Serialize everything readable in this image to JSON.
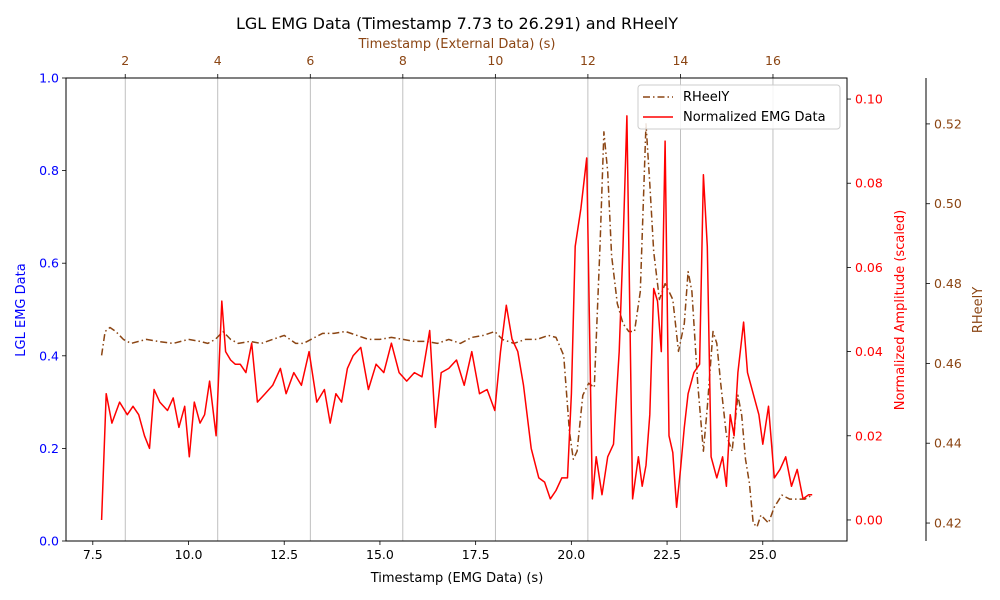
{
  "chart_data": {
    "type": "line",
    "title": "LGL EMG Data (Timestamp 7.73 to 26.291) and RHeelY",
    "xlabel": "Timestamp (EMG Data) (s)",
    "xlabel_top": "Timestamp (External Data) (s)",
    "ylabel_left": "LGL EMG Data",
    "ylabel_right1": "Normalized Amplitude (scaled)",
    "ylabel_right2": "RHeelY",
    "xlim": [
      6.8,
      27.2
    ],
    "xticks": [
      7.5,
      10.0,
      12.5,
      15.0,
      17.5,
      20.0,
      22.5,
      25.0
    ],
    "xtick_labels": [
      "7.5",
      "10.0",
      "12.5",
      "15.0",
      "17.5",
      "20.0",
      "22.5",
      "25.0"
    ],
    "xlim_top": [
      0.72,
      17.6
    ],
    "xticks_top": [
      2,
      4,
      6,
      8,
      10,
      12,
      14,
      16
    ],
    "xtick_labels_top": [
      "2",
      "4",
      "6",
      "8",
      "10",
      "12",
      "14",
      "16"
    ],
    "ylim_left": [
      0.0,
      1.0
    ],
    "yticks_left": [
      "0.0",
      "0.2",
      "0.4",
      "0.6",
      "0.8",
      "1.0"
    ],
    "ylim_right1": [
      -0.005,
      0.105
    ],
    "yticks_right1": [
      "0.00",
      "0.02",
      "0.04",
      "0.06",
      "0.08",
      "0.10"
    ],
    "ylim_right2": [
      0.4155,
      0.5315
    ],
    "yticks_right2": [
      "0.42",
      "0.44",
      "0.46",
      "0.48",
      "0.50",
      "0.52"
    ],
    "grid": "vertical lines at top-axis ticks",
    "legend_position": "upper-right",
    "colors": {
      "left_axis": "#0000ff",
      "emg": "#ff0000",
      "rheel": "#8b4513",
      "grid": "#b0b0b0"
    },
    "series": [
      {
        "name": "RHeelY",
        "axis": "right2",
        "style": "dashdot",
        "x": [
          7.73,
          7.82,
          7.95,
          8.1,
          8.3,
          8.5,
          8.7,
          8.9,
          9.2,
          9.6,
          10.0,
          10.3,
          10.5,
          10.7,
          10.9,
          11.1,
          11.3,
          11.6,
          11.9,
          12.2,
          12.5,
          12.8,
          13.0,
          13.2,
          13.5,
          13.8,
          14.1,
          14.4,
          14.7,
          15.0,
          15.3,
          15.6,
          15.9,
          16.2,
          16.5,
          16.8,
          17.1,
          17.4,
          17.7,
          18.0,
          18.2,
          18.5,
          18.8,
          19.1,
          19.4,
          19.6,
          19.8,
          19.95,
          20.05,
          20.15,
          20.3,
          20.45,
          20.6,
          20.75,
          20.85,
          20.95,
          21.05,
          21.2,
          21.35,
          21.5,
          21.65,
          21.8,
          21.95,
          22.05,
          22.15,
          22.3,
          22.45,
          22.55,
          22.65,
          22.8,
          22.95,
          23.05,
          23.15,
          23.3,
          23.45,
          23.55,
          23.7,
          23.8,
          23.9,
          24.05,
          24.2,
          24.35,
          24.45,
          24.55,
          24.65,
          24.75,
          24.85,
          24.95,
          25.05,
          25.15,
          25.3,
          25.5,
          25.7,
          25.9,
          26.1,
          26.29
        ],
        "values": [
          0.462,
          0.468,
          0.469,
          0.468,
          0.466,
          0.465,
          0.4655,
          0.466,
          0.4655,
          0.465,
          0.466,
          0.4655,
          0.465,
          0.466,
          0.468,
          0.466,
          0.465,
          0.4655,
          0.465,
          0.466,
          0.467,
          0.465,
          0.465,
          0.466,
          0.4675,
          0.4675,
          0.468,
          0.467,
          0.466,
          0.466,
          0.4665,
          0.466,
          0.4655,
          0.4655,
          0.465,
          0.466,
          0.465,
          0.4665,
          0.467,
          0.468,
          0.466,
          0.465,
          0.466,
          0.466,
          0.467,
          0.4665,
          0.462,
          0.443,
          0.436,
          0.438,
          0.452,
          0.455,
          0.454,
          0.49,
          0.518,
          0.508,
          0.487,
          0.475,
          0.47,
          0.468,
          0.468,
          0.478,
          0.52,
          0.505,
          0.488,
          0.476,
          0.48,
          0.478,
          0.476,
          0.463,
          0.47,
          0.483,
          0.478,
          0.455,
          0.438,
          0.449,
          0.468,
          0.465,
          0.455,
          0.442,
          0.438,
          0.452,
          0.447,
          0.436,
          0.43,
          0.42,
          0.419,
          0.422,
          0.421,
          0.42,
          0.424,
          0.427,
          0.426,
          0.426,
          0.426,
          0.427
        ]
      },
      {
        "name": "Normalized EMG Data",
        "axis": "right1",
        "style": "solid",
        "x": [
          7.73,
          7.85,
          8.0,
          8.2,
          8.4,
          8.55,
          8.7,
          8.85,
          8.98,
          9.1,
          9.25,
          9.45,
          9.6,
          9.75,
          9.9,
          10.02,
          10.15,
          10.3,
          10.42,
          10.55,
          10.72,
          10.87,
          10.97,
          11.1,
          11.22,
          11.35,
          11.5,
          11.65,
          11.8,
          12.0,
          12.2,
          12.4,
          12.55,
          12.75,
          12.95,
          13.15,
          13.35,
          13.55,
          13.7,
          13.85,
          14.0,
          14.15,
          14.3,
          14.5,
          14.7,
          14.9,
          15.1,
          15.3,
          15.5,
          15.7,
          15.9,
          16.1,
          16.3,
          16.45,
          16.6,
          16.8,
          17.0,
          17.2,
          17.4,
          17.6,
          17.8,
          18.0,
          18.15,
          18.3,
          18.45,
          18.6,
          18.75,
          18.95,
          19.15,
          19.3,
          19.45,
          19.6,
          19.75,
          19.9,
          20.0,
          20.1,
          20.25,
          20.4,
          20.55,
          20.65,
          20.8,
          20.95,
          21.1,
          21.25,
          21.35,
          21.45,
          21.6,
          21.75,
          21.85,
          21.95,
          22.05,
          22.15,
          22.25,
          22.35,
          22.45,
          22.55,
          22.65,
          22.75,
          22.85,
          22.95,
          23.05,
          23.2,
          23.35,
          23.45,
          23.55,
          23.65,
          23.8,
          23.95,
          24.05,
          24.15,
          24.25,
          24.35,
          24.5,
          24.6,
          24.75,
          24.9,
          25.0,
          25.15,
          25.3,
          25.45,
          25.6,
          25.75,
          25.9,
          26.05,
          26.2,
          26.29
        ],
        "values": [
          0.0,
          0.03,
          0.023,
          0.028,
          0.025,
          0.027,
          0.025,
          0.02,
          0.017,
          0.031,
          0.028,
          0.026,
          0.029,
          0.022,
          0.027,
          0.015,
          0.028,
          0.023,
          0.025,
          0.033,
          0.02,
          0.052,
          0.04,
          0.038,
          0.037,
          0.037,
          0.035,
          0.042,
          0.028,
          0.03,
          0.032,
          0.036,
          0.03,
          0.035,
          0.032,
          0.04,
          0.028,
          0.031,
          0.023,
          0.03,
          0.028,
          0.036,
          0.039,
          0.041,
          0.031,
          0.037,
          0.035,
          0.042,
          0.035,
          0.033,
          0.035,
          0.034,
          0.045,
          0.022,
          0.035,
          0.036,
          0.038,
          0.032,
          0.04,
          0.03,
          0.031,
          0.026,
          0.04,
          0.051,
          0.043,
          0.04,
          0.032,
          0.017,
          0.01,
          0.009,
          0.005,
          0.007,
          0.01,
          0.01,
          0.03,
          0.065,
          0.074,
          0.086,
          0.005,
          0.015,
          0.006,
          0.015,
          0.018,
          0.04,
          0.065,
          0.096,
          0.005,
          0.015,
          0.008,
          0.013,
          0.025,
          0.055,
          0.052,
          0.04,
          0.09,
          0.02,
          0.016,
          0.003,
          0.012,
          0.022,
          0.03,
          0.035,
          0.037,
          0.082,
          0.065,
          0.015,
          0.01,
          0.015,
          0.008,
          0.025,
          0.02,
          0.035,
          0.047,
          0.035,
          0.03,
          0.025,
          0.018,
          0.027,
          0.01,
          0.012,
          0.015,
          0.008,
          0.012,
          0.005,
          0.006,
          0.006
        ]
      }
    ]
  }
}
